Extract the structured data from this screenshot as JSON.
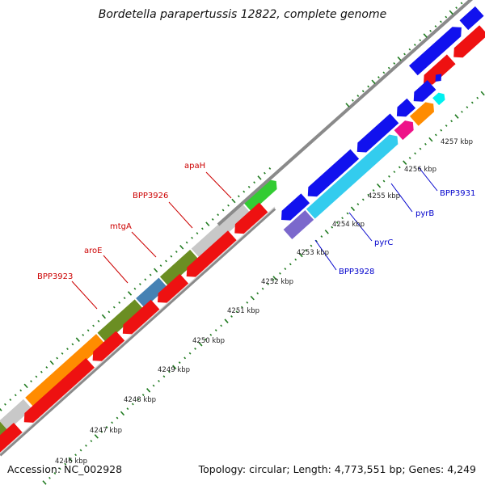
{
  "title": "Bordetella parapertussis 12822, complete genome",
  "accession": "Accession: NC_002928",
  "summary": "Topology: circular; Length: 4,773,551 bp; Genes: 4,249",
  "ticks": [
    {
      "label": "4246 kbp"
    },
    {
      "label": "4247 kbp"
    },
    {
      "label": "4248 kbp"
    },
    {
      "label": "4249 kbp"
    },
    {
      "label": "4250 kbp"
    },
    {
      "label": "4251 kbp"
    },
    {
      "label": "4252 kbp"
    },
    {
      "label": "4253 kbp"
    },
    {
      "label": "4254 kbp"
    },
    {
      "label": "4255 kbp"
    },
    {
      "label": "4256 kbp"
    },
    {
      "label": "4257 kbp"
    }
  ],
  "gene_labels_red": [
    {
      "label": "apaH"
    },
    {
      "label": "BPP3926"
    },
    {
      "label": "mtgA"
    },
    {
      "label": "aroE"
    },
    {
      "label": "BPP3923"
    }
  ],
  "gene_labels_blue": [
    {
      "label": "BPP3931"
    },
    {
      "label": "pyrB"
    },
    {
      "label": "pyrC"
    },
    {
      "label": "BPP3928"
    }
  ],
  "colors": {
    "red": "#ee1111",
    "blue": "#1111ee",
    "green": "#33cc33",
    "gray": "#c8c8c8",
    "olive": "#6b8e23",
    "steel": "#4682b4",
    "orange": "#ff8c00",
    "cyan": "#33ccee",
    "magenta": "#ee1188",
    "aqua": "#00f0f0",
    "slate": "#7b68cc",
    "tick": "#1f7a1f",
    "backbone": "#8a8a8a",
    "label_red": "#cc0000",
    "label_blue": "#0000cc"
  }
}
